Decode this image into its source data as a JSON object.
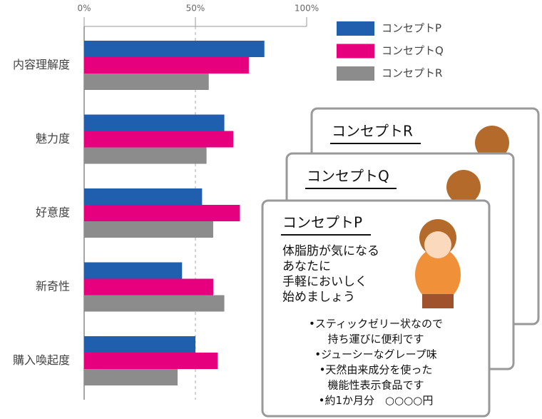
{
  "chart_data": {
    "type": "hbar",
    "categories": [
      "内容理解度",
      "魅力度",
      "好意度",
      "新奇性",
      "購入喚起度"
    ],
    "series": [
      {
        "name": "コンセプトP",
        "color": "#1f5fad",
        "values": [
          81,
          63,
          53,
          44,
          50
        ]
      },
      {
        "name": "コンセプトQ",
        "color": "#e6007e",
        "values": [
          74,
          67,
          70,
          58,
          60
        ]
      },
      {
        "name": "コンセプトR",
        "color": "#8c8c8c",
        "values": [
          56,
          55,
          58,
          63,
          42
        ]
      }
    ],
    "xlim": [
      0,
      100
    ],
    "xticks": [
      {
        "value": 0,
        "label": "0%"
      },
      {
        "value": 50,
        "label": "50%"
      },
      {
        "value": 100,
        "label": "100%"
      }
    ],
    "grid": true,
    "legend": "top-right"
  },
  "cards": [
    {
      "title": "コンセプトR"
    },
    {
      "title": "コンセプトQ"
    },
    {
      "title": "コンセプトP",
      "headline": [
        "体脂肪が気になる",
        "あなたに",
        "手軽においしく",
        "始めましょう"
      ],
      "details": [
        "•スティックゼリー状なので",
        "持ち運びに便利です",
        "•ジューシーなグレープ味",
        "•天然由来成分を使った",
        "機能性表示食品です",
        "•約1か月分　○○○○円"
      ]
    }
  ]
}
